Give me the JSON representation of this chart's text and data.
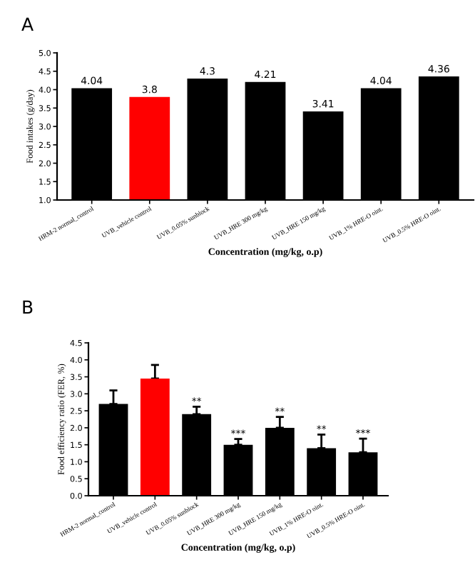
{
  "chart_data": [
    {
      "type": "bar",
      "title": "A",
      "xlabel": "Concentration (mg/kg, o.p)",
      "ylabel": "Food intakes (g/day)",
      "categories": [
        "HRM-2 normal_control",
        "UVB_vehicle control",
        "UVB_0.05% sunblock",
        "UVB_HRE 300 mg/kg",
        "UVB_HRE 150 mg/kg",
        "UVB_1% HRE-O oint.",
        "UVB_0.5% HRE-O oint."
      ],
      "values": [
        4.04,
        3.8,
        4.3,
        4.21,
        3.41,
        4.04,
        4.36
      ],
      "colors": [
        "#000000",
        "#ff0000",
        "#000000",
        "#000000",
        "#000000",
        "#000000",
        "#000000"
      ],
      "data_labels": true,
      "ylim": [
        1.0,
        5.0
      ],
      "yticks": [
        {
          "value": 1.0,
          "label": "1.0"
        },
        {
          "value": 1.5,
          "label": "1.5"
        },
        {
          "value": 2.0,
          "label": "2.0"
        },
        {
          "value": 2.5,
          "label": "2.5"
        },
        {
          "value": 3.0,
          "label": "3.0"
        },
        {
          "value": 3.5,
          "label": "3.5"
        },
        {
          "value": 4.0,
          "label": "4.0"
        },
        {
          "value": 4.5,
          "label": "4.5"
        },
        {
          "value": 5.0,
          "label": "5.0"
        }
      ]
    },
    {
      "type": "bar",
      "title": "B",
      "xlabel": "Concentration (mg/kg, o.p)",
      "ylabel": "Food efficiency ratio (FER, %)",
      "categories": [
        "HRM-2 normal_control",
        "UVB_vehicle control",
        "UVB_0.05% sunblock",
        "UVB_HRE 300 mg/kg",
        "UVB_HRE 150 mg/kg",
        "UVB_1% HRE-O oint.",
        "UVB_0.5% HRE-O oint."
      ],
      "values": [
        2.7,
        3.45,
        2.4,
        1.5,
        2.0,
        1.4,
        1.28
      ],
      "errors": [
        0.4,
        0.4,
        0.22,
        0.17,
        0.32,
        0.4,
        0.4
      ],
      "colors": [
        "#000000",
        "#ff0000",
        "#000000",
        "#000000",
        "#000000",
        "#000000",
        "#000000"
      ],
      "annotations": [
        {
          "text": "**",
          "x": "UVB_0.05% sunblock",
          "y": 2.62
        },
        {
          "text": "***",
          "x": "UVB_HRE 300 mg/kg",
          "y": 1.67
        },
        {
          "text": "**",
          "x": "UVB_HRE 150 mg/kg",
          "y": 2.32
        },
        {
          "text": "**",
          "x": "UVB_1% HRE-O oint.",
          "y": 1.8
        },
        {
          "text": "***",
          "x": "UVB_0.5% HRE-O oint.",
          "y": 1.68
        }
      ],
      "ylim": [
        0.0,
        4.5
      ],
      "yticks": [
        {
          "value": 0.0,
          "label": "0.0"
        },
        {
          "value": 0.5,
          "label": "0.5"
        },
        {
          "value": 1.0,
          "label": "1.0"
        },
        {
          "value": 1.5,
          "label": "1.5"
        },
        {
          "value": 2.0,
          "label": "2.0"
        },
        {
          "value": 2.5,
          "label": "2.5"
        },
        {
          "value": 3.0,
          "label": "3.0"
        },
        {
          "value": 3.5,
          "label": "3.5"
        },
        {
          "value": 4.0,
          "label": "4.0"
        },
        {
          "value": 4.5,
          "label": "4.5"
        }
      ]
    }
  ]
}
